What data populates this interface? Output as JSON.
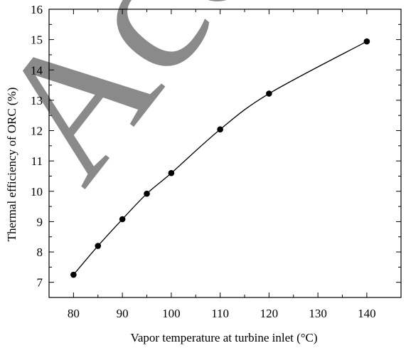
{
  "chart_data": {
    "type": "line",
    "title": "",
    "xlabel": "Vapor temperature at turbine inlet (°C)",
    "ylabel": "Thermal efficiency of ORC (%)",
    "xlim": [
      75,
      147
    ],
    "ylim": [
      6.5,
      16
    ],
    "xticks": [
      80,
      90,
      100,
      110,
      120,
      130,
      140
    ],
    "yticks": [
      7,
      8,
      9,
      10,
      11,
      12,
      13,
      14,
      15,
      16
    ],
    "grid": false,
    "legend": "none",
    "series": [
      {
        "x": [
          80,
          85,
          90,
          95,
          100,
          110,
          120,
          140
        ],
        "values": [
          7.25,
          8.2,
          9.08,
          9.92,
          10.6,
          12.04,
          13.22,
          14.94
        ],
        "color": "#000000",
        "marker": "filled-circle"
      }
    ]
  },
  "watermark": {
    "text": "Accepted",
    "color": "#8a8a8a"
  }
}
